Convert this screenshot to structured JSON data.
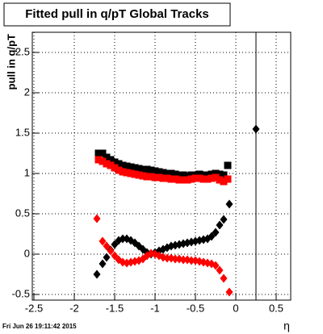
{
  "chart_data": {
    "type": "scatter",
    "title": "Fitted pull in q/pT  Global Tracks",
    "y_label": "pull in q/pT",
    "x_label": "η",
    "timestamp": "Fri Jun 26 19:11:42 2015",
    "xlim": [
      -2.52,
      0.68
    ],
    "ylim": [
      -0.57,
      2.75
    ],
    "xticks": [
      -2.5,
      -2,
      -1.5,
      -1,
      -0.5,
      0,
      0.5
    ],
    "yticks": [
      -0.5,
      0,
      0.5,
      1,
      1.5,
      2,
      2.5
    ],
    "grid": true,
    "reference_line_x": 0.25,
    "series": [
      {
        "marker": "square",
        "color": "#000000",
        "x": [
          -1.7,
          -1.65,
          -1.6,
          -1.55,
          -1.5,
          -1.45,
          -1.4,
          -1.35,
          -1.3,
          -1.25,
          -1.2,
          -1.15,
          -1.1,
          -1.05,
          -1.0,
          -0.95,
          -0.9,
          -0.85,
          -0.8,
          -0.75,
          -0.7,
          -0.65,
          -0.6,
          -0.55,
          -0.5,
          -0.45,
          -0.4,
          -0.35,
          -0.3,
          -0.25,
          -0.2,
          -0.15,
          -0.1
        ],
        "values": [
          1.25,
          1.25,
          1.2,
          1.17,
          1.14,
          1.12,
          1.1,
          1.09,
          1.08,
          1.07,
          1.06,
          1.05,
          1.05,
          1.04,
          1.03,
          1.02,
          1.01,
          1.0,
          1.0,
          0.99,
          0.98,
          0.98,
          0.97,
          0.98,
          0.98,
          0.99,
          0.98,
          0.98,
          0.99,
          1.0,
          0.99,
          0.98,
          1.1
        ]
      },
      {
        "marker": "square",
        "color": "#ff0000",
        "x": [
          -1.7,
          -1.65,
          -1.6,
          -1.55,
          -1.5,
          -1.45,
          -1.4,
          -1.35,
          -1.3,
          -1.25,
          -1.2,
          -1.15,
          -1.1,
          -1.05,
          -1.0,
          -0.95,
          -0.9,
          -0.85,
          -0.8,
          -0.75,
          -0.7,
          -0.65,
          -0.6,
          -0.55,
          -0.5,
          -0.45,
          -0.4,
          -0.35,
          -0.3,
          -0.25,
          -0.2,
          -0.15,
          -0.1
        ],
        "values": [
          1.17,
          1.15,
          1.12,
          1.1,
          1.07,
          1.04,
          1.02,
          1.01,
          1.0,
          0.99,
          0.98,
          0.97,
          0.96,
          0.96,
          0.95,
          0.95,
          0.94,
          0.94,
          0.93,
          0.93,
          0.92,
          0.92,
          0.92,
          0.93,
          0.94,
          0.94,
          0.93,
          0.93,
          0.94,
          0.95,
          0.92,
          0.9,
          0.93
        ]
      },
      {
        "marker": "diamond",
        "color": "#000000",
        "x": [
          -1.72,
          -1.65,
          -1.6,
          -1.55,
          -1.5,
          -1.45,
          -1.4,
          -1.35,
          -1.3,
          -1.25,
          -1.2,
          -1.15,
          -1.1,
          -1.05,
          -1.0,
          -0.95,
          -0.9,
          -0.85,
          -0.8,
          -0.75,
          -0.7,
          -0.65,
          -0.6,
          -0.55,
          -0.5,
          -0.45,
          -0.4,
          -0.35,
          -0.3,
          -0.25,
          -0.2,
          -0.15,
          -0.08
        ],
        "values": [
          -0.25,
          -0.12,
          -0.04,
          0.05,
          0.12,
          0.17,
          0.19,
          0.19,
          0.17,
          0.14,
          0.1,
          0.06,
          0.02,
          0.0,
          0.02,
          0.04,
          0.06,
          0.08,
          0.1,
          0.11,
          0.12,
          0.13,
          0.14,
          0.15,
          0.16,
          0.17,
          0.18,
          0.19,
          0.22,
          0.27,
          0.36,
          0.43,
          0.62
        ]
      },
      {
        "marker": "diamond",
        "color": "#ff0000",
        "x": [
          -1.72,
          -1.65,
          -1.6,
          -1.55,
          -1.5,
          -1.45,
          -1.4,
          -1.35,
          -1.3,
          -1.25,
          -1.2,
          -1.15,
          -1.1,
          -1.05,
          -1.0,
          -0.95,
          -0.9,
          -0.85,
          -0.8,
          -0.75,
          -0.7,
          -0.65,
          -0.6,
          -0.55,
          -0.5,
          -0.45,
          -0.4,
          -0.35,
          -0.3,
          -0.25,
          -0.2,
          -0.15,
          -0.08
        ],
        "values": [
          0.44,
          0.16,
          0.1,
          0.04,
          -0.02,
          -0.07,
          -0.1,
          -0.11,
          -0.1,
          -0.09,
          -0.08,
          -0.06,
          -0.02,
          0.01,
          0.0,
          -0.02,
          -0.04,
          -0.05,
          -0.05,
          -0.06,
          -0.06,
          -0.07,
          -0.07,
          -0.08,
          -0.08,
          -0.09,
          -0.1,
          -0.11,
          -0.12,
          -0.14,
          -0.2,
          -0.3,
          -0.47
        ]
      },
      {
        "marker": "diamond",
        "color": "#000000",
        "x": [
          0.25
        ],
        "values": [
          1.55
        ]
      }
    ]
  }
}
